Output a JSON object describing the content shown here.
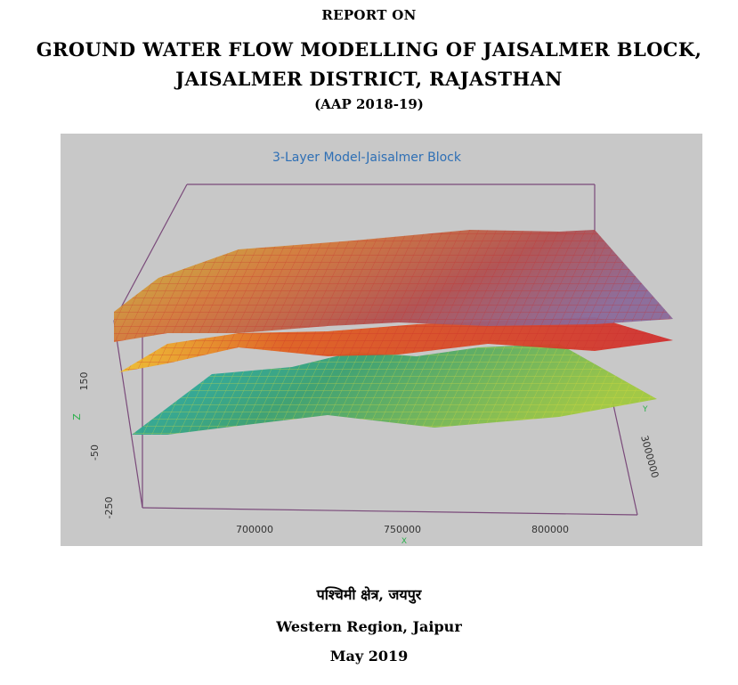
{
  "header": {
    "report_on": "REPORT ON",
    "title_line1": "GROUND WATER FLOW MODELLING OF JAISALMER BLOCK,",
    "title_line2": "JAISALMER DISTRICT, RAJASTHAN",
    "plan": "(AAP 2018-19)"
  },
  "figure": {
    "title": "3-Layer Model-Jaisalmer Block",
    "z_axis_label": "Z",
    "x_axis_label": "X",
    "y_axis_label": "Y",
    "z_ticks": [
      "150",
      "-50",
      "-250"
    ],
    "x_ticks": [
      "700000",
      "750000",
      "800000"
    ],
    "y_ticks": [
      "3000000"
    ],
    "colors": {
      "background": "#c8c8c8",
      "frame": "#7a4a7a",
      "layer_top": "#c0392b",
      "layer_mid": "#e8a020",
      "layer_bottom": "#2aa0b0"
    }
  },
  "footer": {
    "region_hindi": "पश्चिमी क्षेत्र, जयपुर",
    "region_english": "Western Region, Jaipur",
    "date": "May 2019"
  }
}
